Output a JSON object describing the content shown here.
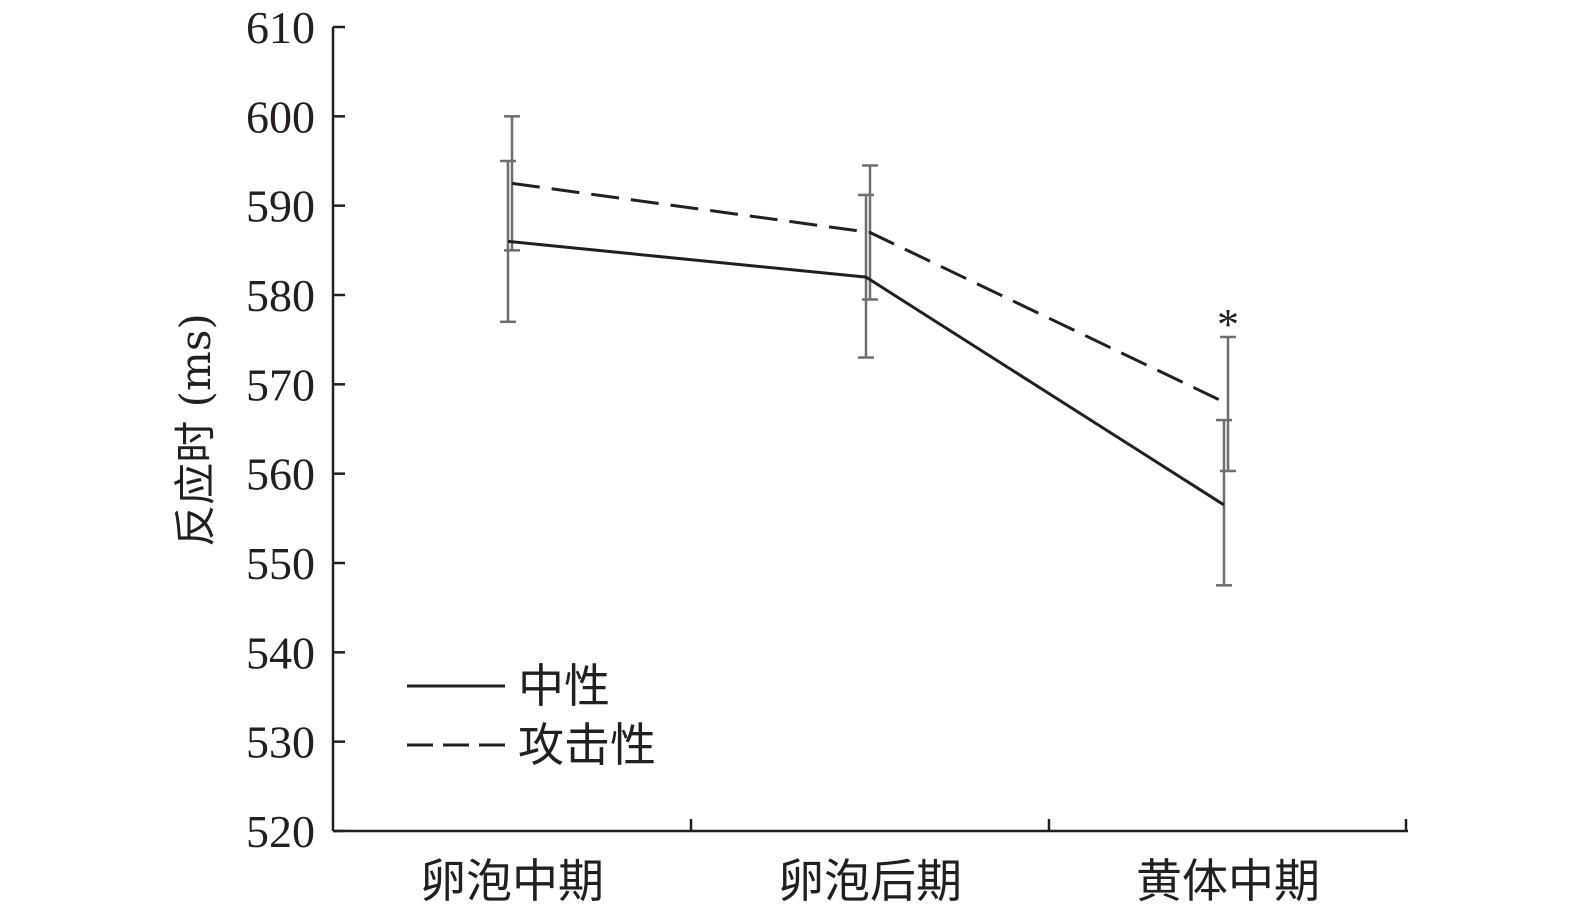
{
  "chart_data": {
    "type": "line",
    "title": "",
    "xlabel": "",
    "ylabel": "反应时 (ms)",
    "ylim": [
      520,
      610
    ],
    "y_ticks": [
      520,
      530,
      540,
      550,
      560,
      570,
      580,
      590,
      600,
      610
    ],
    "categories": [
      "卵泡中期",
      "卵泡后期",
      "黄体中期"
    ],
    "series": [
      {
        "name": "中性",
        "style": "solid",
        "color": "#231f20",
        "values": [
          586,
          582,
          556.5
        ],
        "error_low": [
          577,
          573,
          547.5
        ],
        "error_high": [
          595,
          591.2,
          566
        ]
      },
      {
        "name": "攻击性",
        "style": "dashed",
        "color": "#231f20",
        "values": [
          592.5,
          587,
          567.8
        ],
        "error_low": [
          585,
          579.5,
          560.3
        ],
        "error_high": [
          600,
          594.5,
          575.3
        ]
      }
    ],
    "error_bar_color": "#6d6e71",
    "legend_position": "bottom-left",
    "grid": false,
    "annotations": [
      {
        "text": "*",
        "category_index": 2,
        "y": 578
      }
    ]
  }
}
